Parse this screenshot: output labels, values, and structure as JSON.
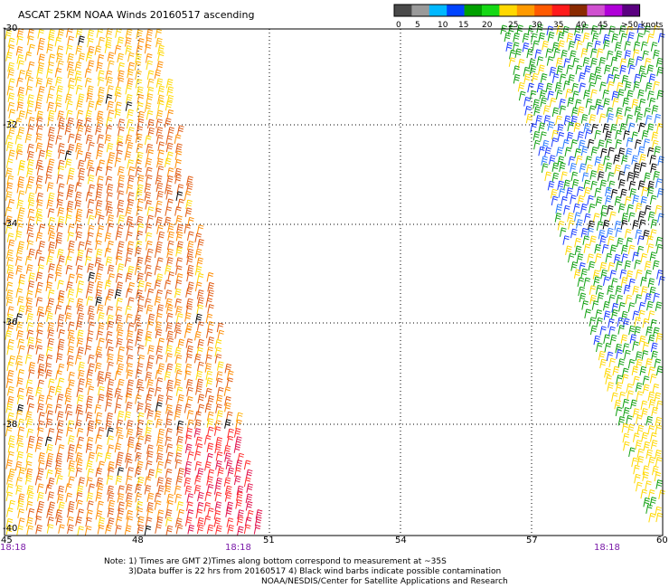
{
  "title": "ASCAT 25KM NOAA Winds 20160517 ascending",
  "colorbar": {
    "colors": [
      "#4a4a4a",
      "#9a9a9a",
      "#00b8ff",
      "#0044ff",
      "#00a000",
      "#15d815",
      "#ffd800",
      "#ff9a00",
      "#ff5a00",
      "#ff1a1a",
      "#8a2a00",
      "#d050d0",
      "#b000d8",
      "#5a0080"
    ],
    "tick_labels": [
      "0",
      "5",
      "10",
      "15",
      "20",
      "25",
      "30",
      "35",
      "40",
      "45",
      ">50 knots"
    ]
  },
  "lat_labels": [
    "-30",
    "-32",
    "-34",
    "-36",
    "-38",
    "-40"
  ],
  "lon_labels": [
    "45",
    "48",
    "51",
    "54",
    "57",
    "60"
  ],
  "time_labels": [
    "18:18",
    "18:18",
    "18:18"
  ],
  "notes": [
    "Note: 1) Times are GMT 2)Times along bottom correspond to measurement at ~35S",
    "3)Data buffer is 22 hrs from 20160517 4) Black wind barbs indicate possible contamination",
    "NOAA/NESDIS/Center for Satellite Applications and Research"
  ]
}
